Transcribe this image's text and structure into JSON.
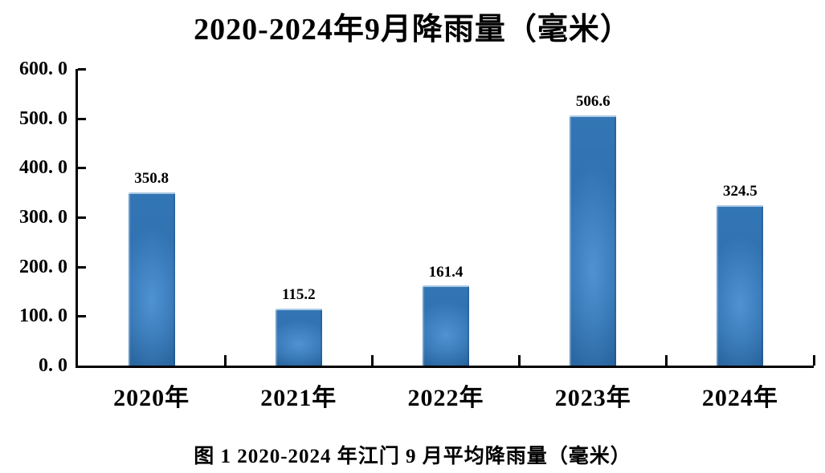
{
  "title": "2020-2024年9月降雨量（毫米）",
  "caption": "图 1 2020-2024 年江门 9 月平均降雨量（毫米）",
  "colors": {
    "background": "#ffffff",
    "text": "#000000",
    "axis": "#000000",
    "bar_top": "#3376b5",
    "bar_mid": "#2f6fae",
    "bar_bottom": "#2a66a0",
    "bar_glow": "#4f93d3"
  },
  "chart_data": {
    "type": "bar",
    "title": "2020-2024年9月降雨量（毫米）",
    "categories": [
      "2020年",
      "2021年",
      "2022年",
      "2023年",
      "2024年"
    ],
    "values": [
      350.8,
      115.2,
      161.4,
      506.6,
      324.5
    ],
    "value_labels": [
      "350.8",
      "115.2",
      "161.4",
      "506.6",
      "324.5"
    ],
    "xlabel": "",
    "ylabel": "",
    "ylim": [
      0,
      600
    ],
    "ytick_interval": 100,
    "ytick_labels": [
      "600. 0",
      "500. 0",
      "400. 0",
      "300. 0",
      "200. 0",
      "100. 0",
      "0. 0"
    ],
    "grid": false,
    "legend": false,
    "legend_position": "none",
    "series_color": "#2f6fae"
  }
}
